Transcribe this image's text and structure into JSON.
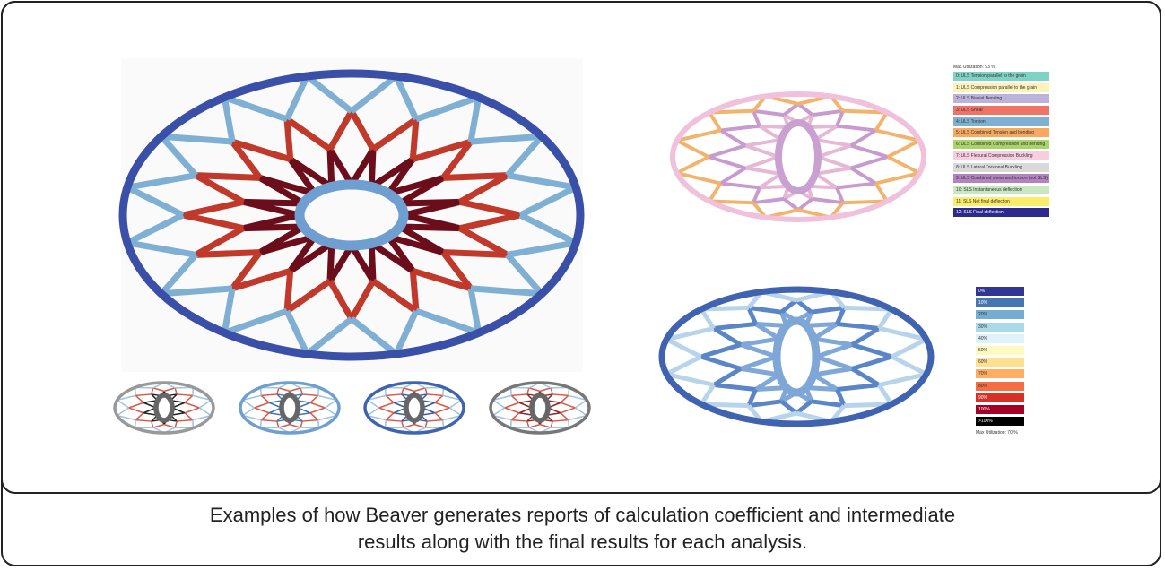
{
  "caption": {
    "line1": "Examples of how Beaver generates reports of calculation coefficient and intermediate",
    "line2": "results along with the final results for each analysis."
  },
  "legend_top": {
    "title": "Max Utilization: 93 %",
    "items": [
      {
        "label": "0: ULS Tension parallel to the grain",
        "color": "#7fd3c4"
      },
      {
        "label": "1: ULS Compression parallel to the grain",
        "color": "#fbf3b8"
      },
      {
        "label": "2: ULS Biaxial Bending",
        "color": "#bcb3da"
      },
      {
        "label": "3: ULS Shear",
        "color": "#ef7467"
      },
      {
        "label": "4: ULS Torsion",
        "color": "#7fb0d4"
      },
      {
        "label": "5: ULS Combined Tension and bending",
        "color": "#f8a95d"
      },
      {
        "label": "6: ULS Combined Compression and bending",
        "color": "#a8d468"
      },
      {
        "label": "7: ULS Flexural Compression Buckling",
        "color": "#f7cde0"
      },
      {
        "label": "8: ULS Lateral Torsional Buckling",
        "color": "#d9d9d9"
      },
      {
        "label": "9: ULS Combined shear and torsion (not SLS)",
        "color": "#b383c0"
      },
      {
        "label": "10: SLS Instantaneous deflection",
        "color": "#c9e7c2"
      },
      {
        "label": "11: SLS Net final deflection",
        "color": "#fbec6a"
      },
      {
        "label": "12: SLS Final deflection",
        "color": "#2c2a8c"
      }
    ]
  },
  "legend_bottom": {
    "items": [
      {
        "label": "0%",
        "color": "#313695"
      },
      {
        "label": "10%",
        "color": "#4575b4"
      },
      {
        "label": "20%",
        "color": "#74add1"
      },
      {
        "label": "30%",
        "color": "#abd9e9"
      },
      {
        "label": "40%",
        "color": "#e0f3f8"
      },
      {
        "label": "50%",
        "color": "#fef9c0"
      },
      {
        "label": "60%",
        "color": "#fee090"
      },
      {
        "label": "70%",
        "color": "#fdae61"
      },
      {
        "label": "80%",
        "color": "#f46d43"
      },
      {
        "label": "90%",
        "color": "#d73027"
      },
      {
        "label": "100%",
        "color": "#a50026"
      },
      {
        "label": ">100%",
        "color": "#000000"
      }
    ],
    "footer": "Max Utilization: 70 %"
  }
}
